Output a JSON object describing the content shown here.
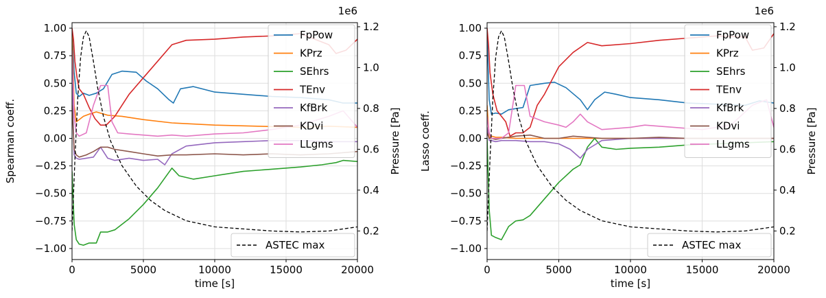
{
  "chart_data": [
    {
      "type": "line",
      "xlabel": "time [s]",
      "ylabel": "Spearman coeff.",
      "y2label": "Pressure [Pa]",
      "y2_offset_text": "1e6",
      "xlim": [
        0,
        20000
      ],
      "ylim": [
        -1.1,
        1.05
      ],
      "y2lim": [
        0.06,
        1.22
      ],
      "xticks": [
        "0",
        "5000",
        "10000",
        "15000",
        "20000"
      ],
      "yticks": [
        "−1.00",
        "−0.75",
        "−0.50",
        "−0.25",
        "0.00",
        "0.25",
        "0.50",
        "0.75",
        "1.00"
      ],
      "y2ticks": [
        "0.2",
        "0.4",
        "0.6",
        "0.8",
        "1.0",
        "1.2"
      ],
      "grid": true,
      "legend_position": "top-right",
      "legend2_position": "bottom-right",
      "series": [
        {
          "name": "FpPow",
          "color": "#1f77b4",
          "axis": "left",
          "x": [
            0,
            150,
            300,
            500,
            800,
            1200,
            1700,
            2200,
            2800,
            3500,
            4500,
            5200,
            6000,
            6800,
            7100,
            7600,
            8500,
            10000,
            12000,
            14000,
            16000,
            18000,
            19000,
            20000
          ],
          "y": [
            0.98,
            0.6,
            0.41,
            0.38,
            0.41,
            0.39,
            0.41,
            0.45,
            0.58,
            0.61,
            0.6,
            0.52,
            0.45,
            0.35,
            0.32,
            0.45,
            0.47,
            0.42,
            0.4,
            0.38,
            0.37,
            0.35,
            0.32,
            0.32
          ]
        },
        {
          "name": "KPrz",
          "color": "#ff7f0e",
          "axis": "left",
          "x": [
            0,
            150,
            300,
            500,
            800,
            1200,
            1700,
            2500,
            3500,
            5000,
            7000,
            10000,
            13000,
            16000,
            18000,
            20000
          ],
          "y": [
            0.95,
            0.3,
            0.15,
            0.17,
            0.2,
            0.22,
            0.24,
            0.21,
            0.2,
            0.17,
            0.14,
            0.12,
            0.11,
            0.1,
            0.11,
            0.1
          ]
        },
        {
          "name": "SEhrs",
          "color": "#2ca02c",
          "axis": "left",
          "x": [
            0,
            150,
            300,
            500,
            800,
            1200,
            1700,
            2000,
            2500,
            3000,
            4000,
            5000,
            6000,
            7000,
            7500,
            8500,
            10000,
            12000,
            14000,
            16000,
            17500,
            18500,
            19000,
            20000
          ],
          "y": [
            -0.3,
            -0.78,
            -0.92,
            -0.96,
            -0.97,
            -0.95,
            -0.95,
            -0.85,
            -0.85,
            -0.83,
            -0.73,
            -0.6,
            -0.45,
            -0.27,
            -0.34,
            -0.37,
            -0.34,
            -0.3,
            -0.28,
            -0.26,
            -0.24,
            -0.22,
            -0.2,
            -0.21
          ]
        },
        {
          "name": "TEnv",
          "color": "#d62728",
          "axis": "left",
          "x": [
            0,
            100,
            200,
            350,
            500,
            800,
            1200,
            1600,
            2000,
            2400,
            3000,
            3500,
            4000,
            5000,
            6000,
            7000,
            8000,
            10000,
            12000,
            14000,
            16000,
            18000,
            18500,
            19200,
            20000
          ],
          "y": [
            1.0,
            0.9,
            0.7,
            0.55,
            0.45,
            0.4,
            0.28,
            0.18,
            0.12,
            0.12,
            0.2,
            0.3,
            0.4,
            0.55,
            0.7,
            0.85,
            0.89,
            0.9,
            0.92,
            0.93,
            0.95,
            0.85,
            0.77,
            0.8,
            0.9
          ]
        },
        {
          "name": "KfBrk",
          "color": "#9467bd",
          "axis": "left",
          "x": [
            0,
            150,
            300,
            500,
            1000,
            1500,
            2000,
            2500,
            3000,
            4000,
            5000,
            6000,
            6500,
            7000,
            8000,
            10000,
            12000,
            14000,
            16000,
            18000,
            20000
          ],
          "y": [
            0.5,
            -0.15,
            -0.18,
            -0.19,
            -0.18,
            -0.17,
            -0.08,
            -0.18,
            -0.2,
            -0.18,
            -0.2,
            -0.19,
            -0.24,
            -0.14,
            -0.07,
            -0.04,
            -0.03,
            -0.02,
            -0.02,
            -0.03,
            -0.03
          ]
        },
        {
          "name": "KDvi",
          "color": "#8c564b",
          "axis": "left",
          "x": [
            0,
            150,
            300,
            500,
            1000,
            1500,
            2000,
            2500,
            3000,
            4000,
            5000,
            6000,
            7000,
            8000,
            10000,
            12000,
            14000,
            16000,
            18000,
            20000
          ],
          "y": [
            0.3,
            -0.1,
            -0.15,
            -0.17,
            -0.15,
            -0.12,
            -0.08,
            -0.08,
            -0.1,
            -0.12,
            -0.14,
            -0.16,
            -0.15,
            -0.15,
            -0.14,
            -0.15,
            -0.14,
            -0.15,
            -0.14,
            -0.12
          ]
        },
        {
          "name": "LLgms",
          "color": "#e377c2",
          "axis": "left",
          "x": [
            0,
            150,
            300,
            500,
            1000,
            1500,
            2000,
            2500,
            2800,
            3200,
            4000,
            5000,
            6000,
            7000,
            8000,
            10000,
            12000,
            14000,
            16000,
            18000,
            19000,
            20000
          ],
          "y": [
            0.8,
            0.2,
            0.05,
            0.02,
            0.05,
            0.3,
            0.48,
            0.48,
            0.15,
            0.05,
            0.04,
            0.03,
            0.02,
            0.03,
            0.02,
            0.04,
            0.05,
            0.08,
            0.12,
            0.2,
            0.25,
            0.1
          ]
        },
        {
          "name": "ASTEC max",
          "color": "#000000",
          "axis": "right",
          "dashed": true,
          "x": [
            0,
            200,
            400,
            600,
            800,
            1000,
            1200,
            1500,
            1800,
            2200,
            2700,
            3500,
            4500,
            5500,
            6500,
            8000,
            10000,
            12000,
            14000,
            16000,
            18000,
            19000,
            20000
          ],
          "y": [
            0.2,
            0.55,
            0.85,
            1.05,
            1.15,
            1.18,
            1.15,
            1.03,
            0.9,
            0.76,
            0.64,
            0.52,
            0.42,
            0.35,
            0.3,
            0.25,
            0.22,
            0.21,
            0.2,
            0.195,
            0.2,
            0.21,
            0.22
          ]
        }
      ]
    },
    {
      "type": "line",
      "xlabel": "time [s]",
      "ylabel": "Lasso coeff.",
      "y2label": "Pressure [Pa]",
      "y2_offset_text": "1e6",
      "xlim": [
        0,
        20000
      ],
      "ylim": [
        -1.1,
        1.05
      ],
      "y2lim": [
        0.06,
        1.22
      ],
      "xticks": [
        "0",
        "5000",
        "10000",
        "15000",
        "20000"
      ],
      "yticks": [
        "−1.00",
        "−0.75",
        "−0.50",
        "−0.25",
        "0.00",
        "0.25",
        "0.50",
        "0.75",
        "1.00"
      ],
      "y2ticks": [
        "0.2",
        "0.4",
        "0.6",
        "0.8",
        "1.0",
        "1.2"
      ],
      "grid": true,
      "legend_position": "top-right",
      "legend2_position": "bottom-right",
      "series": [
        {
          "name": "FpPow",
          "color": "#1f77b4",
          "axis": "left",
          "x": [
            0,
            150,
            300,
            600,
            1000,
            1500,
            2000,
            2500,
            3000,
            4000,
            4700,
            5500,
            6500,
            7000,
            7500,
            8200,
            9000,
            10000,
            12000,
            14000,
            16000,
            18000,
            19000,
            20000
          ],
          "y": [
            0.95,
            0.35,
            0.22,
            0.23,
            0.22,
            0.26,
            0.27,
            0.28,
            0.48,
            0.5,
            0.51,
            0.46,
            0.35,
            0.26,
            0.35,
            0.42,
            0.4,
            0.37,
            0.35,
            0.32,
            0.31,
            0.3,
            0.34,
            0.32
          ]
        },
        {
          "name": "KPrz",
          "color": "#ff7f0e",
          "axis": "left",
          "x": [
            0,
            150,
            300,
            600,
            1000,
            2000,
            5000,
            10000,
            15000,
            20000
          ],
          "y": [
            0.3,
            0.0,
            0.02,
            0.01,
            0.01,
            0.0,
            0.0,
            0.0,
            0.0,
            0.0
          ]
        },
        {
          "name": "SEhrs",
          "color": "#2ca02c",
          "axis": "left",
          "x": [
            0,
            150,
            300,
            600,
            1000,
            1500,
            2000,
            2500,
            3000,
            4000,
            5000,
            6000,
            6500,
            7000,
            7500,
            8000,
            9000,
            10000,
            12000,
            14000,
            16000,
            18000,
            20000
          ],
          "y": [
            0.0,
            -0.65,
            -0.88,
            -0.9,
            -0.92,
            -0.8,
            -0.75,
            -0.74,
            -0.7,
            -0.55,
            -0.4,
            -0.28,
            -0.24,
            -0.08,
            0.0,
            -0.08,
            -0.1,
            -0.09,
            -0.08,
            -0.06,
            -0.05,
            -0.04,
            -0.03
          ]
        },
        {
          "name": "TEnv",
          "color": "#d62728",
          "axis": "left",
          "x": [
            0,
            100,
            200,
            400,
            700,
            1000,
            1300,
            1600,
            2000,
            2500,
            3000,
            3500,
            4000,
            5000,
            6000,
            7000,
            8000,
            10000,
            12000,
            14000,
            16000,
            18000,
            18500,
            19300,
            20000
          ],
          "y": [
            1.0,
            0.85,
            0.6,
            0.4,
            0.25,
            0.2,
            0.15,
            0.02,
            0.05,
            0.05,
            0.1,
            0.3,
            0.4,
            0.65,
            0.78,
            0.87,
            0.84,
            0.86,
            0.89,
            0.91,
            0.93,
            0.92,
            0.8,
            0.82,
            0.95
          ]
        },
        {
          "name": "KfBrk",
          "color": "#9467bd",
          "axis": "left",
          "x": [
            0,
            150,
            300,
            600,
            1000,
            2000,
            3000,
            4000,
            5000,
            5800,
            6500,
            7000,
            8000,
            10000,
            12000,
            14000,
            16000,
            18000,
            20000
          ],
          "y": [
            0.1,
            -0.02,
            -0.02,
            -0.03,
            -0.02,
            -0.02,
            -0.03,
            -0.03,
            -0.05,
            -0.1,
            -0.18,
            -0.1,
            -0.02,
            0.0,
            0.0,
            0.0,
            0.0,
            0.0,
            0.0
          ]
        },
        {
          "name": "KDvi",
          "color": "#8c564b",
          "axis": "left",
          "x": [
            0,
            150,
            300,
            600,
            1000,
            2000,
            3000,
            4000,
            5000,
            6000,
            8000,
            10000,
            12000,
            14000,
            16000,
            18000,
            20000
          ],
          "y": [
            0.05,
            0.0,
            0.0,
            -0.01,
            0.0,
            0.02,
            0.03,
            0.0,
            0.0,
            0.02,
            0.0,
            0.0,
            0.01,
            0.0,
            0.0,
            0.0,
            0.0
          ]
        },
        {
          "name": "LLgms",
          "color": "#e377c2",
          "axis": "left",
          "x": [
            0,
            150,
            300,
            600,
            1000,
            1500,
            2000,
            2300,
            2600,
            3000,
            4000,
            5000,
            5500,
            6000,
            6500,
            7000,
            8000,
            10000,
            11000,
            13000,
            15000,
            17000,
            18500,
            19500,
            20000
          ],
          "y": [
            0.2,
            0.05,
            0.0,
            0.0,
            0.0,
            0.05,
            0.48,
            0.48,
            0.48,
            0.2,
            0.15,
            0.12,
            0.1,
            0.15,
            0.22,
            0.15,
            0.08,
            0.1,
            0.12,
            0.1,
            0.08,
            0.12,
            0.3,
            0.35,
            0.1
          ]
        },
        {
          "name": "ASTEC max",
          "color": "#000000",
          "axis": "right",
          "dashed": true,
          "x": [
            0,
            200,
            400,
            600,
            800,
            1000,
            1200,
            1500,
            1800,
            2200,
            2700,
            3500,
            4500,
            5500,
            6500,
            8000,
            10000,
            12000,
            14000,
            16000,
            18000,
            19000,
            20000
          ],
          "y": [
            0.2,
            0.55,
            0.85,
            1.05,
            1.15,
            1.18,
            1.15,
            1.03,
            0.9,
            0.76,
            0.64,
            0.52,
            0.42,
            0.35,
            0.3,
            0.25,
            0.22,
            0.21,
            0.2,
            0.195,
            0.2,
            0.21,
            0.22
          ]
        }
      ]
    }
  ]
}
